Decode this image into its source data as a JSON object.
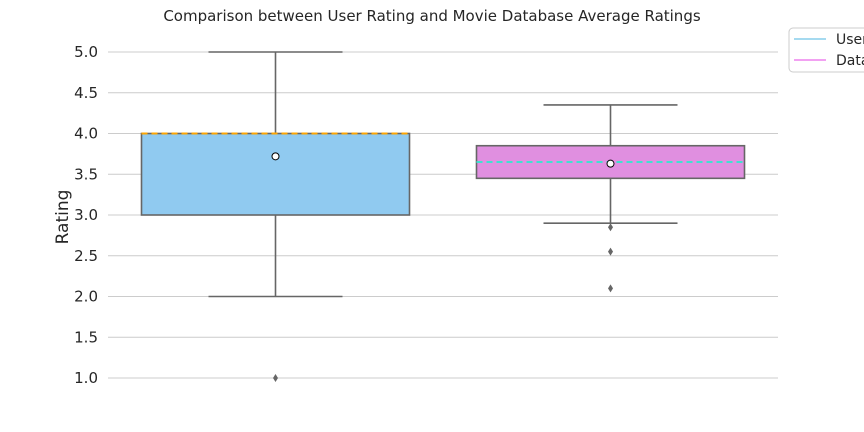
{
  "chart_data": {
    "type": "box",
    "title": "Comparison between User Rating and Movie Database Average Ratings",
    "xlabel": "",
    "ylabel": "Rating",
    "ylim": [
      0.95,
      5.15
    ],
    "yticks": [
      "1.0",
      "1.5",
      "2.0",
      "2.5",
      "3.0",
      "3.5",
      "4.0",
      "4.5",
      "5.0"
    ],
    "grid": true,
    "legend_position": "top-right, partly cut off",
    "legend": [
      {
        "label": "User",
        "color": "#87ceeb"
      },
      {
        "label": "Data",
        "color": "#ee82ee"
      }
    ],
    "series": [
      {
        "box_color": "#90caf0",
        "median_color": "#ffa500",
        "stats": {
          "whislo": 2.0,
          "q1": 3.0,
          "median": 4.0,
          "q3": 4.0,
          "whishi": 5.0,
          "mean": 3.72
        },
        "outliers": [
          1.0
        ]
      },
      {
        "box_color": "#e08fe0",
        "median_color": "#40e0d0",
        "stats": {
          "whislo": 2.9,
          "q1": 3.45,
          "median": 3.65,
          "q3": 3.85,
          "whishi": 4.35,
          "mean": 3.63
        },
        "outliers": [
          2.85,
          2.55,
          2.1
        ]
      }
    ]
  }
}
